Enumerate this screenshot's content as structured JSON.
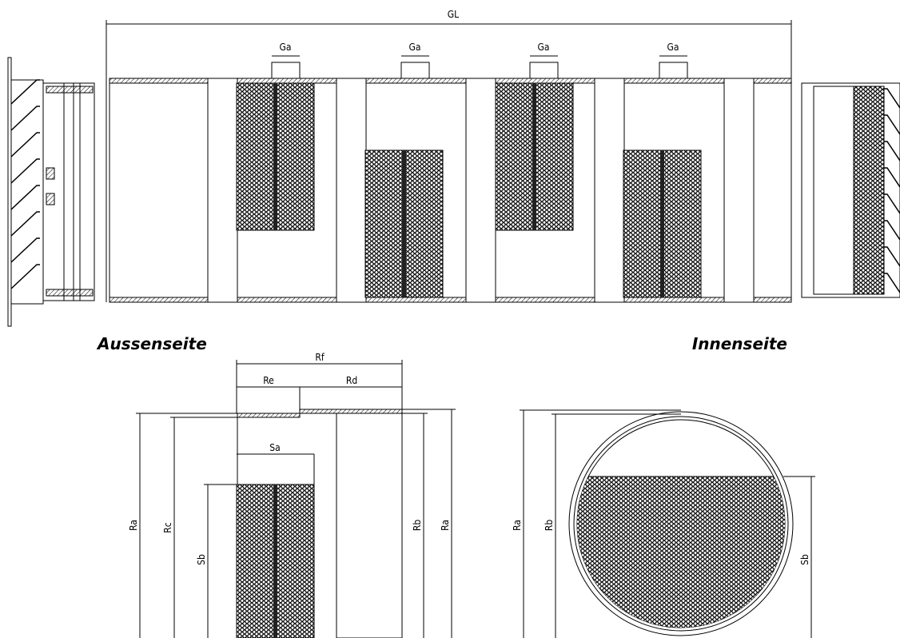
{
  "top_view": {
    "overall_length": "GL",
    "gaps": [
      "Ga",
      "Ga",
      "Ga",
      "Ga"
    ]
  },
  "side_labels": {
    "outside": "Aussenseite",
    "inside": "Innenseite"
  },
  "section": {
    "Rf": "Rf",
    "Re": "Re",
    "Rd": "Rd",
    "Sa": "Sa",
    "Ra_left": "Ra",
    "Rc": "Rc",
    "Sb": "Sb",
    "Rb": "Rb",
    "Ra_right": "Ra"
  },
  "cross_section": {
    "Ra": "Ra",
    "Rb": "Rb",
    "Sb": "Sb"
  }
}
